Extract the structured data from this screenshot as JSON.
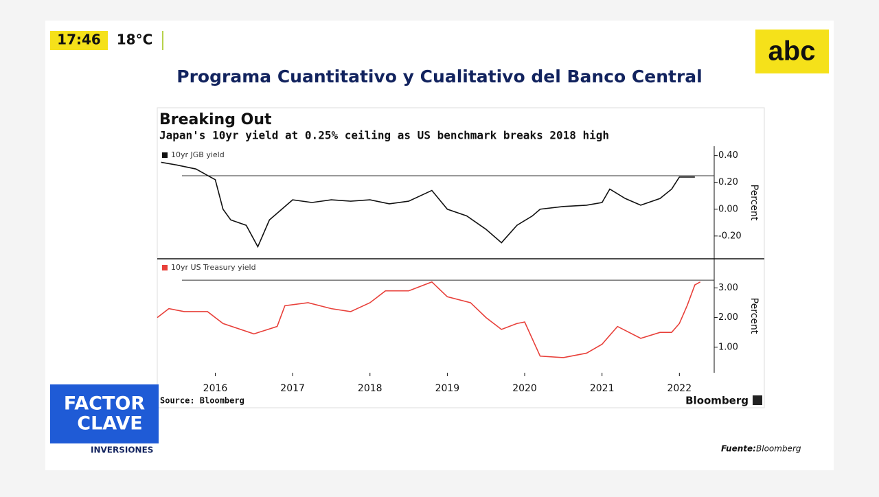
{
  "header": {
    "time": "17:46",
    "temperature": "18°C",
    "logo": "abc"
  },
  "headline": "Programa Cuantitativo y Cualitativo del Banco Central",
  "chart_data": [
    {
      "type": "line",
      "title": "Breaking Out",
      "subtitle": "Japan's 10yr yield at 0.25% ceiling as US benchmark breaks 2018 high",
      "y_label": "Percent",
      "x": [
        2015.3,
        2015.5,
        2015.75,
        2016.0,
        2016.1,
        2016.2,
        2016.4,
        2016.55,
        2016.7,
        2016.9,
        2017.0,
        2017.25,
        2017.5,
        2017.75,
        2018.0,
        2018.25,
        2018.5,
        2018.8,
        2019.0,
        2019.25,
        2019.5,
        2019.7,
        2019.9,
        2020.1,
        2020.2,
        2020.5,
        2020.8,
        2021.0,
        2021.1,
        2021.3,
        2021.5,
        2021.75,
        2021.9,
        2022.0,
        2022.2
      ],
      "series": [
        {
          "name": "10yr JGB yield",
          "color": "#111111",
          "values": [
            0.35,
            0.33,
            0.3,
            0.22,
            0.0,
            -0.08,
            -0.12,
            -0.28,
            -0.08,
            0.02,
            0.07,
            0.05,
            0.07,
            0.06,
            0.07,
            0.04,
            0.06,
            0.14,
            0.0,
            -0.05,
            -0.15,
            -0.25,
            -0.12,
            -0.05,
            0.0,
            0.02,
            0.03,
            0.05,
            0.15,
            0.08,
            0.03,
            0.08,
            0.15,
            0.24,
            0.24
          ]
        }
      ],
      "reference_line": 0.25,
      "xlim": [
        2015.25,
        2022.45
      ],
      "ylim": [
        -0.37,
        0.47
      ],
      "yticks": [
        {
          "value": -0.2,
          "label": "-0.20"
        },
        {
          "value": 0,
          "label": "0.00"
        },
        {
          "value": 0.2,
          "label": "0.20"
        },
        {
          "value": 0.4,
          "label": "0.40"
        }
      ]
    },
    {
      "type": "line",
      "y_label": "Percent",
      "x": [
        2015.25,
        2015.4,
        2015.6,
        2015.9,
        2016.1,
        2016.5,
        2016.8,
        2016.9,
        2017.2,
        2017.5,
        2017.75,
        2018.0,
        2018.2,
        2018.5,
        2018.8,
        2019.0,
        2019.3,
        2019.5,
        2019.7,
        2019.9,
        2020.0,
        2020.2,
        2020.5,
        2020.8,
        2021.0,
        2021.2,
        2021.5,
        2021.75,
        2021.9,
        2022.0,
        2022.1,
        2022.2,
        2022.27
      ],
      "series": [
        {
          "name": "10yr US Treasury yield",
          "color": "#e8403a",
          "values": [
            2.0,
            2.3,
            2.2,
            2.2,
            1.8,
            1.45,
            1.7,
            2.4,
            2.5,
            2.3,
            2.2,
            2.5,
            2.9,
            2.9,
            3.2,
            2.7,
            2.5,
            2.0,
            1.6,
            1.8,
            1.85,
            0.7,
            0.65,
            0.8,
            1.1,
            1.7,
            1.3,
            1.5,
            1.5,
            1.8,
            2.4,
            3.1,
            3.2
          ]
        }
      ],
      "reference_line": 3.26,
      "xlim": [
        2015.25,
        2022.45
      ],
      "ylim": [
        0.14,
        3.98
      ],
      "xticks": [
        2016,
        2017,
        2018,
        2019,
        2020,
        2021,
        2022
      ],
      "yticks": [
        {
          "value": 1,
          "label": "1.00"
        },
        {
          "value": 2,
          "label": "2.00"
        },
        {
          "value": 3,
          "label": "3.00"
        }
      ]
    }
  ],
  "source": "Source: Bloomberg",
  "brand": "Bloomberg",
  "show": {
    "line1": "FACTOR",
    "line2": "CLAVE",
    "tag": "INVERSIONES"
  },
  "footer": {
    "label": "Fuente:",
    "source": "Bloomberg"
  }
}
